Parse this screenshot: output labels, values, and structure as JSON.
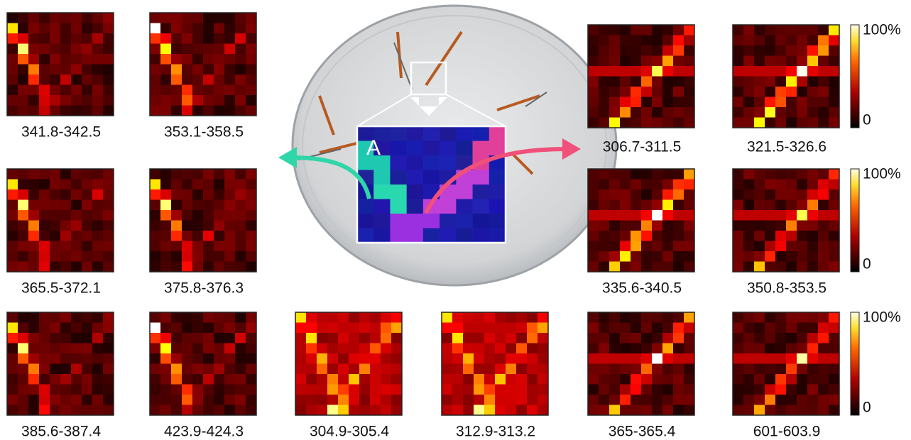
{
  "inset_label": "A",
  "panels": [
    {
      "label": "341.8-342.5"
    },
    {
      "label": "353.1-358.5"
    },
    {
      "label": "365.5-372.1"
    },
    {
      "label": "375.8-376.3"
    },
    {
      "label": "385.6-387.4"
    },
    {
      "label": "423.9-424.3"
    },
    {
      "label": "304.9-305.4"
    },
    {
      "label": "312.9-313.2"
    },
    {
      "label": "306.7-311.5"
    },
    {
      "label": "321.5-326.6"
    },
    {
      "label": "335.6-340.5"
    },
    {
      "label": "350.8-353.5"
    },
    {
      "label": "365-365.4"
    },
    {
      "label": "601-603.9"
    }
  ],
  "colorbars": [
    {
      "max_label": "100%",
      "min_label": "0"
    },
    {
      "max_label": "100%",
      "min_label": "0"
    },
    {
      "max_label": "100%",
      "min_label": "0"
    }
  ]
}
